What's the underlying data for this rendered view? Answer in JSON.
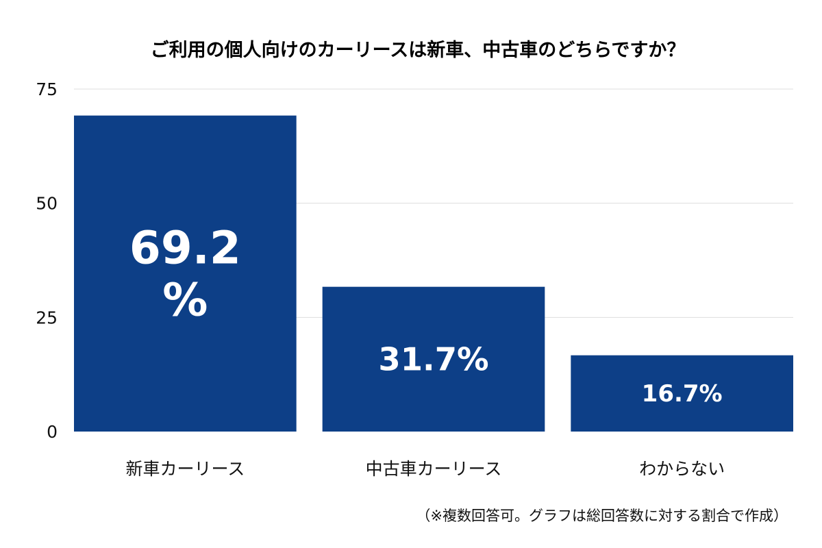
{
  "chart_data": {
    "type": "bar",
    "title": "ご利用の個人向けのカーリースは新車、中古車のどちらですか？",
    "categories": [
      "新車カーリース",
      "中古車カーリース",
      "わからない"
    ],
    "values": [
      69.2,
      31.7,
      16.7
    ],
    "data_labels": [
      [
        "69.2",
        "%"
      ],
      [
        "31.7%"
      ],
      [
        "16.7%"
      ]
    ],
    "ylim": [
      0,
      75
    ],
    "yticks": [
      "0",
      "25",
      "50",
      "75"
    ],
    "ytick_values": [
      0,
      25,
      50,
      75
    ],
    "xlabel": "",
    "ylabel": "",
    "grid": true,
    "legend": "none",
    "bar_color": "#0d3f87",
    "grid_color": "#dddddd",
    "footnote": "（※複数回答可。グラフは総回答数に対する割合で作成）"
  }
}
